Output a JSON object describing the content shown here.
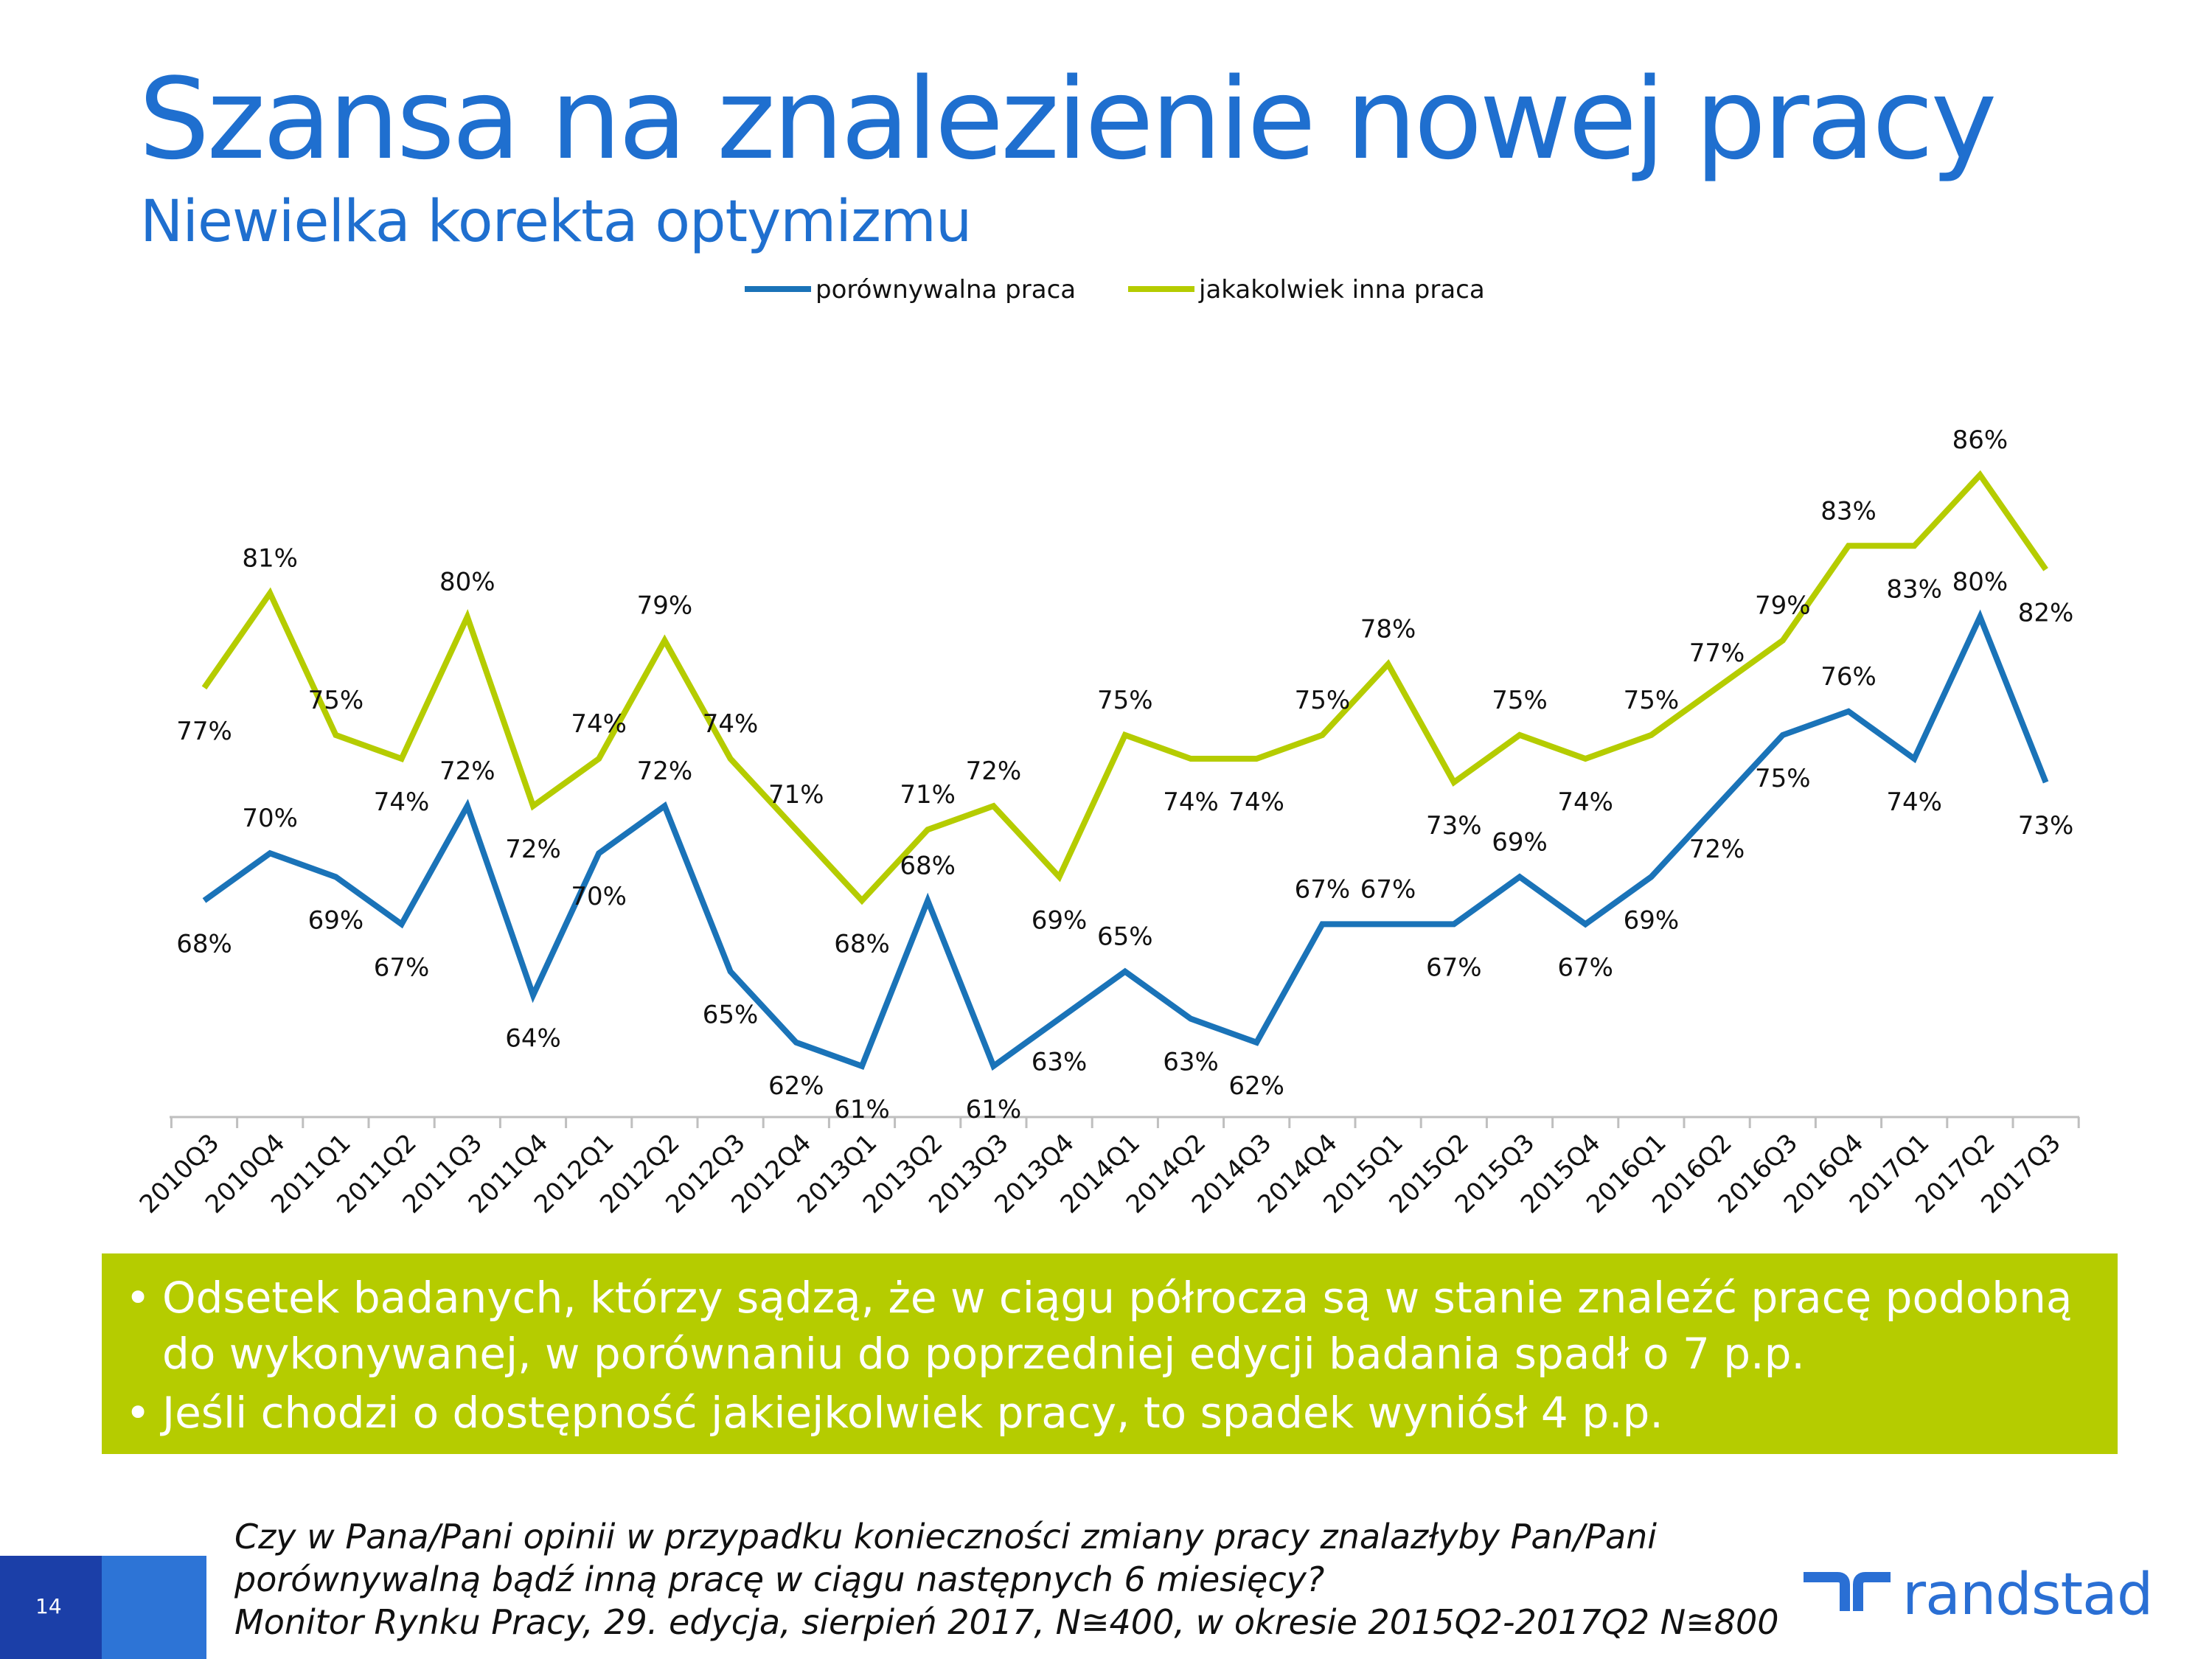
{
  "title": "Szansa na znalezienie nowej pracy",
  "subtitle": "Niewielka korekta optymizmu",
  "colors": {
    "title": "#1f6fcf",
    "series1": "#1a73b8",
    "series2": "#b5cc00",
    "box": "#b5cc00",
    "brand": "#2a6fd4"
  },
  "chart_data": {
    "type": "line",
    "categories": [
      "2010Q3",
      "2010Q4",
      "2011Q1",
      "2011Q2",
      "2011Q3",
      "2011Q4",
      "2012Q1",
      "2012Q2",
      "2012Q3",
      "2012Q4",
      "2013Q1",
      "2013Q2",
      "2013Q3",
      "2013Q4",
      "2014Q1",
      "2014Q2",
      "2014Q3",
      "2014Q4",
      "2015Q1",
      "2015Q2",
      "2015Q3",
      "2015Q4",
      "2016Q1",
      "2016Q2",
      "2016Q3",
      "2016Q4",
      "2017Q1",
      "2017Q2",
      "2017Q3"
    ],
    "series": [
      {
        "name": "porównywalna praca",
        "color": "#1a73b8",
        "values": [
          68,
          70,
          69,
          67,
          72,
          64,
          70,
          72,
          65,
          62,
          61,
          68,
          61,
          63,
          65,
          63,
          62,
          67,
          67,
          67,
          69,
          67,
          69,
          72,
          75,
          76,
          74,
          80,
          73
        ],
        "labels": [
          "68%",
          "70%",
          "69%",
          "67%",
          "72%",
          "64%",
          "70%",
          "72%",
          "65%",
          "62%",
          "61%",
          "68%",
          "61%",
          "63%",
          "65%",
          "63%",
          "62%",
          "67%",
          "67%",
          "67%",
          "69%",
          "67%",
          "69%",
          "72%",
          "75%",
          "76%",
          "74%",
          "80%",
          "73%"
        ]
      },
      {
        "name": "jakakolwiek inna praca",
        "color": "#b5cc00",
        "values": [
          77,
          81,
          75,
          74,
          80,
          72,
          74,
          79,
          74,
          71,
          68,
          71,
          72,
          69,
          75,
          74,
          74,
          75,
          78,
          73,
          75,
          74,
          75,
          77,
          79,
          83,
          83,
          86,
          82
        ],
        "labels": [
          "77%",
          "81%",
          "75%",
          "74%",
          "80%",
          "72%",
          "74%",
          "79%",
          "74%",
          "71%",
          "68%",
          "71%",
          "72%",
          "69%",
          "75%",
          "74%",
          "74%",
          "75%",
          "78%",
          "73%",
          "75%",
          "74%",
          "75%",
          "77%",
          "79%",
          "83%",
          "83%",
          "86%",
          "82%"
        ]
      }
    ],
    "ylim": [
      59,
      88
    ],
    "grid": false,
    "legend": "top-center"
  },
  "bullets": [
    "Odsetek badanych, którzy sądzą, że w ciągu półrocza są w stanie znaleźć pracę podobną do wykonywanej, w porównaniu do poprzedniej edycji badania spadł o 7 p.p.",
    "Jeśli chodzi o dostępność jakiejkolwiek pracy, to spadek wyniósł 4 p.p."
  ],
  "footnote": {
    "question_line1": "Czy w Pana/Pani opinii w przypadku konieczności zmiany pracy znalazłyby Pan/Pani",
    "question_line2": "porównywalną bądź inną pracę w ciągu następnych 6 miesięcy?",
    "source": "Monitor Rynku Pracy, 29. edycja, sierpień 2017, N≅400, w okresie 2015Q2-2017Q2 N≅800"
  },
  "page_number": "14",
  "brand": "randstad"
}
